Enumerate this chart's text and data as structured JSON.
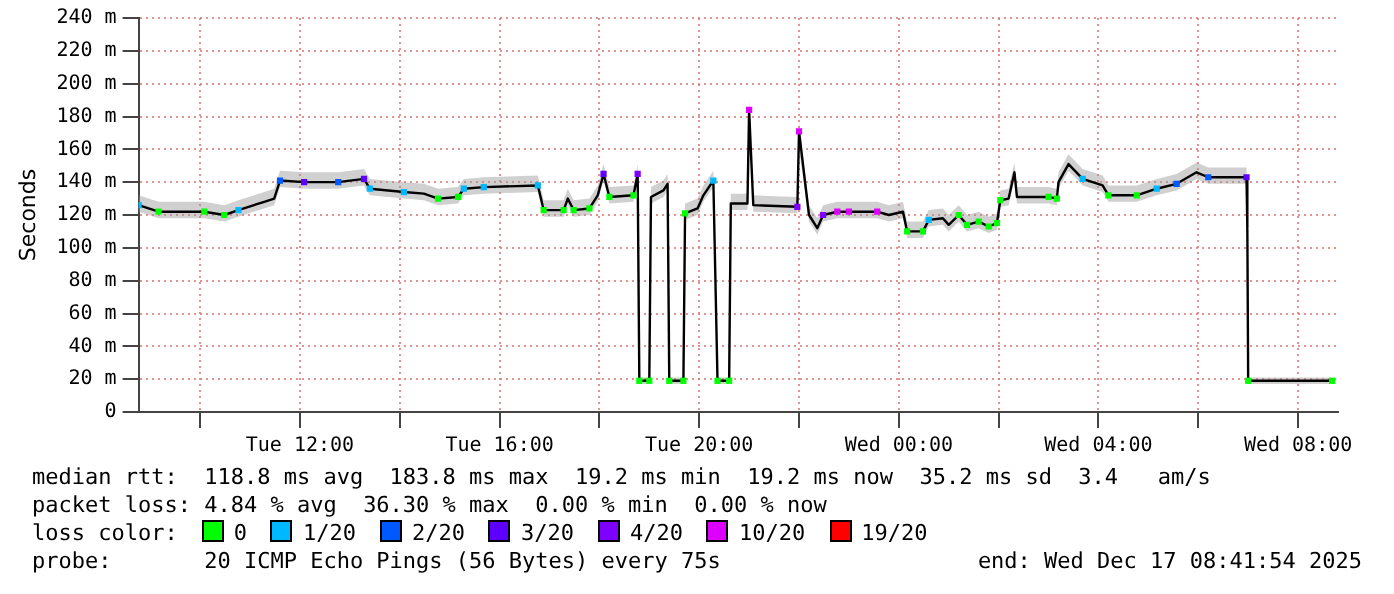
{
  "chart_data": {
    "type": "line",
    "ylabel": "Seconds",
    "legend_title": "loss color:",
    "legend": "bottom",
    "grid": true,
    "line_style": "solid",
    "xlim": [
      "2025-12-16T08:46",
      "2025-12-17T08:48"
    ],
    "xticks": [
      {
        "value": "2025-12-16T10:00",
        "label": null
      },
      {
        "value": "2025-12-16T12:00",
        "label": "Tue 12:00"
      },
      {
        "value": "2025-12-16T14:00",
        "label": null
      },
      {
        "value": "2025-12-16T16:00",
        "label": "Tue 16:00"
      },
      {
        "value": "2025-12-16T18:00",
        "label": null
      },
      {
        "value": "2025-12-16T20:00",
        "label": "Tue 20:00"
      },
      {
        "value": "2025-12-16T22:00",
        "label": null
      },
      {
        "value": "2025-12-17T00:00",
        "label": "Wed 00:00"
      },
      {
        "value": "2025-12-17T02:00",
        "label": null
      },
      {
        "value": "2025-12-17T04:00",
        "label": "Wed 04:00"
      },
      {
        "value": "2025-12-17T06:00",
        "label": null
      },
      {
        "value": "2025-12-17T08:00",
        "label": "Wed 08:00"
      }
    ],
    "ylim": [
      0,
      240
    ],
    "yticks": [
      0,
      {
        "value": 20,
        "label": "20 m"
      },
      {
        "value": 40,
        "label": "40 m"
      },
      {
        "value": 60,
        "label": "60 m"
      },
      {
        "value": 80,
        "label": "80 m"
      },
      {
        "value": 100,
        "label": "100 m"
      },
      {
        "value": 120,
        "label": "120 m"
      },
      {
        "value": 140,
        "label": "140 m"
      },
      {
        "value": 160,
        "label": "160 m"
      },
      {
        "value": 180,
        "label": "180 m"
      },
      {
        "value": 200,
        "label": "200 m"
      },
      {
        "value": 220,
        "label": "220 m"
      },
      {
        "value": 240,
        "label": "240 m"
      }
    ],
    "annotations": [
      "median rtt:  118.8 ms avg  183.8 ms max  19.2 ms min  19.2 ms now  35.2 ms sd  3.4   am/s",
      "packet loss: 4.84 % avg  36.30 % max  0.00 % min  0.00 % now",
      "probe:       20 ICMP Echo Pings (56 Bytes) every 75s",
      "end: Wed Dec 17 08:41:54 2025"
    ],
    "series": [
      {
        "color": "#000000",
        "x": [
          "2025-12-16T08:46",
          "2025-12-16T09:10",
          "2025-12-16T10:05",
          "2025-12-16T10:29",
          "2025-12-16T10:46",
          "2025-12-16T11:17",
          "2025-12-16T11:29",
          "2025-12-16T11:36",
          "2025-12-16T12:05",
          "2025-12-16T12:46",
          "2025-12-16T13:17",
          "2025-12-16T13:24",
          "2025-12-16T14:05",
          "2025-12-16T14:29",
          "2025-12-16T14:46",
          "2025-12-16T15:10",
          "2025-12-16T15:17",
          "2025-12-16T15:41",
          "2025-12-16T16:46",
          "2025-12-16T16:53",
          "2025-12-16T17:17",
          "2025-12-16T17:22",
          "2025-12-16T17:29",
          "2025-12-16T17:48",
          "2025-12-16T17:58",
          "2025-12-16T18:05",
          "2025-12-16T18:12",
          "2025-12-16T18:41",
          "2025-12-16T18:46",
          "2025-12-16T18:48",
          "2025-12-16T19:00",
          "2025-12-16T19:02",
          "2025-12-16T19:17",
          "2025-12-16T19:22",
          "2025-12-16T19:24",
          "2025-12-16T19:41",
          "2025-12-16T19:43",
          "2025-12-16T19:58",
          "2025-12-16T20:05",
          "2025-12-16T20:17",
          "2025-12-16T20:22",
          "2025-12-16T20:36",
          "2025-12-16T20:38",
          "2025-12-16T20:58",
          "2025-12-16T21:00",
          "2025-12-16T21:05",
          "2025-12-16T21:58",
          "2025-12-16T22:00",
          "2025-12-16T22:12",
          "2025-12-16T22:22",
          "2025-12-16T22:29",
          "2025-12-16T22:46",
          "2025-12-16T23:00",
          "2025-12-16T23:34",
          "2025-12-16T23:48",
          "2025-12-17T00:05",
          "2025-12-17T00:10",
          "2025-12-17T00:29",
          "2025-12-17T00:36",
          "2025-12-17T00:53",
          "2025-12-17T01:00",
          "2025-12-17T01:12",
          "2025-12-17T01:22",
          "2025-12-17T01:36",
          "2025-12-17T01:48",
          "2025-12-17T01:58",
          "2025-12-17T02:02",
          "2025-12-17T02:12",
          "2025-12-17T02:19",
          "2025-12-17T02:22",
          "2025-12-17T03:00",
          "2025-12-17T03:10",
          "2025-12-17T03:12",
          "2025-12-17T03:24",
          "2025-12-17T03:41",
          "2025-12-17T04:05",
          "2025-12-17T04:12",
          "2025-12-17T04:46",
          "2025-12-17T05:10",
          "2025-12-17T05:34",
          "2025-12-17T05:58",
          "2025-12-17T06:12",
          "2025-12-17T06:58",
          "2025-12-17T06:59",
          "2025-12-17T07:00",
          "2025-12-17T08:41"
        ],
        "values": [
          126,
          122,
          122,
          120,
          123,
          128,
          130,
          141,
          140,
          140,
          142,
          136,
          134,
          133,
          130,
          131,
          136,
          137,
          138,
          123,
          123,
          130,
          123,
          124,
          132,
          145,
          131,
          132,
          145,
          19,
          19,
          131,
          135,
          139,
          19,
          19,
          121,
          124,
          132,
          141,
          19,
          19,
          127,
          127,
          184,
          126,
          125,
          171,
          120,
          112,
          120,
          122,
          122,
          122,
          120,
          122,
          110,
          110,
          117,
          118,
          114,
          120,
          114,
          116,
          113,
          115,
          129,
          130,
          146,
          131,
          131,
          130,
          140,
          151,
          142,
          138,
          132,
          132,
          136,
          139,
          146,
          143,
          143,
          112,
          19,
          19
        ],
        "lower": [
          122,
          118,
          118,
          116,
          119,
          124,
          126,
          137,
          136,
          136,
          138,
          132,
          130,
          129,
          126,
          127,
          132,
          133,
          134,
          119,
          119,
          126,
          119,
          120,
          128,
          141,
          127,
          128,
          141,
          17,
          17,
          127,
          131,
          135,
          17,
          17,
          117,
          120,
          128,
          137,
          17,
          17,
          123,
          123,
          170,
          122,
          121,
          160,
          116,
          108,
          116,
          118,
          118,
          118,
          116,
          118,
          106,
          106,
          113,
          114,
          110,
          116,
          110,
          112,
          109,
          111,
          125,
          126,
          142,
          127,
          127,
          126,
          136,
          147,
          138,
          134,
          128,
          128,
          132,
          135,
          142,
          139,
          139,
          108,
          17,
          17
        ],
        "upper": [
          132,
          128,
          128,
          126,
          129,
          134,
          136,
          147,
          146,
          146,
          148,
          142,
          140,
          139,
          136,
          137,
          142,
          143,
          144,
          129,
          129,
          136,
          129,
          130,
          138,
          151,
          137,
          138,
          151,
          21,
          21,
          137,
          141,
          145,
          21,
          21,
          127,
          130,
          138,
          147,
          21,
          21,
          133,
          133,
          190,
          132,
          131,
          177,
          126,
          118,
          126,
          128,
          128,
          128,
          126,
          128,
          116,
          116,
          123,
          124,
          120,
          126,
          120,
          122,
          119,
          121,
          135,
          136,
          152,
          137,
          137,
          136,
          146,
          157,
          148,
          144,
          138,
          138,
          142,
          145,
          152,
          149,
          149,
          118,
          21,
          21
        ]
      },
      {
        "type": "scatter",
        "marker": "square",
        "name": "0",
        "color": "#00ff00",
        "x": [
          "2025-12-16T09:10",
          "2025-12-16T10:05",
          "2025-12-16T10:29",
          "2025-12-16T14:46",
          "2025-12-16T15:10",
          "2025-12-16T16:53",
          "2025-12-16T17:17",
          "2025-12-16T17:29",
          "2025-12-16T17:48",
          "2025-12-16T18:12",
          "2025-12-16T18:41",
          "2025-12-16T18:48",
          "2025-12-16T19:00",
          "2025-12-16T19:24",
          "2025-12-16T19:41",
          "2025-12-16T19:43",
          "2025-12-16T20:22",
          "2025-12-16T20:36",
          "2025-12-17T00:10",
          "2025-12-17T00:29",
          "2025-12-17T01:12",
          "2025-12-17T01:22",
          "2025-12-17T01:36",
          "2025-12-17T01:48",
          "2025-12-17T01:58",
          "2025-12-17T02:02",
          "2025-12-17T03:00",
          "2025-12-17T03:10",
          "2025-12-17T04:12",
          "2025-12-17T04:46",
          "2025-12-17T07:00",
          "2025-12-17T08:41"
        ],
        "values": [
          122,
          122,
          120,
          130,
          131,
          123,
          123,
          123,
          124,
          131,
          132,
          19,
          19,
          19,
          19,
          121,
          19,
          19,
          110,
          110,
          120,
          114,
          116,
          113,
          115,
          129,
          131,
          130,
          132,
          132,
          19,
          19
        ]
      },
      {
        "type": "scatter",
        "marker": "square",
        "name": "1/20",
        "color": "#00b8ff",
        "x": [
          "2025-12-16T08:46",
          "2025-12-16T10:46",
          "2025-12-16T13:24",
          "2025-12-16T14:05",
          "2025-12-16T15:17",
          "2025-12-16T15:41",
          "2025-12-16T16:46",
          "2025-12-16T20:17",
          "2025-12-17T00:36",
          "2025-12-17T03:41",
          "2025-12-17T05:10"
        ],
        "values": [
          126,
          123,
          136,
          134,
          136,
          137,
          138,
          141,
          117,
          142,
          136
        ]
      },
      {
        "type": "scatter",
        "marker": "square",
        "name": "2/20",
        "color": "#0059ff",
        "x": [
          "2025-12-16T11:36",
          "2025-12-16T12:46",
          "2025-12-17T05:34",
          "2025-12-17T06:12"
        ],
        "values": [
          141,
          140,
          139,
          143
        ]
      },
      {
        "type": "scatter",
        "marker": "square",
        "name": "3/20",
        "color": "#5e00ff",
        "x": [
          "2025-12-16T12:05",
          "2025-12-16T13:17",
          "2025-12-16T18:05",
          "2025-12-17T06:58"
        ],
        "values": [
          140,
          142,
          145,
          143
        ]
      },
      {
        "type": "scatter",
        "marker": "square",
        "name": "4/20",
        "color": "#7e00ff",
        "x": [
          "2025-12-16T18:46",
          "2025-12-16T21:58",
          "2025-12-16T22:29"
        ],
        "values": [
          145,
          125,
          120
        ]
      },
      {
        "type": "scatter",
        "marker": "square",
        "name": "10/20",
        "color": "#dd00ff",
        "x": [
          "2025-12-16T21:00",
          "2025-12-16T22:00",
          "2025-12-16T22:46",
          "2025-12-16T23:00",
          "2025-12-16T23:34"
        ],
        "values": [
          184,
          171,
          122,
          122,
          122
        ]
      },
      {
        "type": "scatter",
        "marker": "square",
        "name": "19/20",
        "color": "#ff0000"
      }
    ]
  }
}
